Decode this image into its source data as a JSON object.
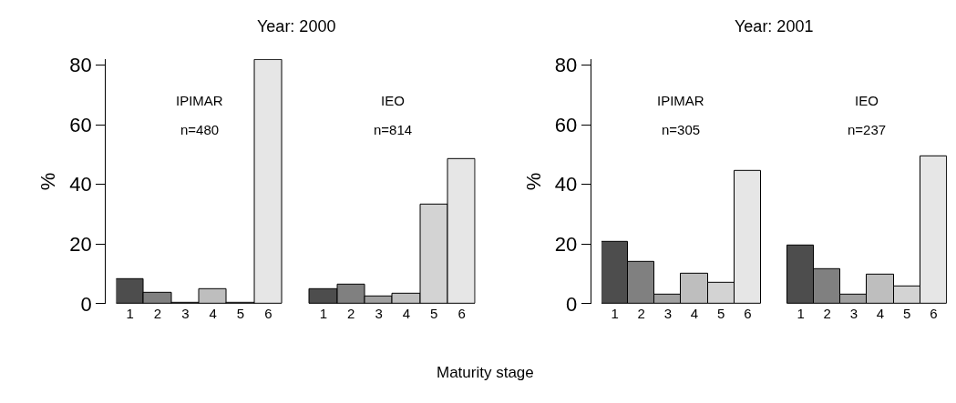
{
  "chart_data": [
    {
      "type": "bar",
      "title": "Year: 2000",
      "ylabel": "%",
      "xlabel": "Maturity stage",
      "categories": [
        "1",
        "2",
        "3",
        "4",
        "5",
        "6",
        null,
        "1",
        "2",
        "3",
        "4",
        "5",
        "6"
      ],
      "values": [
        8.4,
        3.6,
        0.2,
        4.8,
        0.2,
        81.7,
        null,
        4.8,
        6.4,
        2.4,
        3.4,
        33.1,
        48.4
      ],
      "colors": [
        "#4d4d4d",
        "#808080",
        "#a0a0a0",
        "#bebebe",
        "#d3d3d3",
        "#e6e6e6",
        null,
        "#4d4d4d",
        "#808080",
        "#a0a0a0",
        "#bebebe",
        "#d3d3d3",
        "#e6e6e6"
      ],
      "annotations": [
        "IPIMAR",
        "n=480",
        "IEO",
        "n=814"
      ],
      "ylim": [
        0,
        82
      ],
      "yticks": [
        0,
        20,
        40,
        60,
        80
      ]
    },
    {
      "type": "bar",
      "title": "Year: 2001",
      "ylabel": "%",
      "categories": [
        "1",
        "2",
        "3",
        "4",
        "5",
        "6",
        null,
        "1",
        "2",
        "3",
        "4",
        "5",
        "6"
      ],
      "values": [
        20.7,
        14.0,
        3.1,
        10.0,
        7.0,
        44.4,
        null,
        19.6,
        11.6,
        3.1,
        9.7,
        5.7,
        49.4
      ],
      "colors": [
        "#4d4d4d",
        "#808080",
        "#a0a0a0",
        "#bebebe",
        "#d3d3d3",
        "#e6e6e6",
        null,
        "#4d4d4d",
        "#808080",
        "#a0a0a0",
        "#bebebe",
        "#d3d3d3",
        "#e6e6e6"
      ],
      "annotations": [
        "IPIMAR",
        "n=305",
        "IEO",
        "n=237"
      ],
      "ylim": [
        0,
        82
      ],
      "yticks": [
        0,
        20,
        40,
        60,
        80
      ]
    }
  ]
}
